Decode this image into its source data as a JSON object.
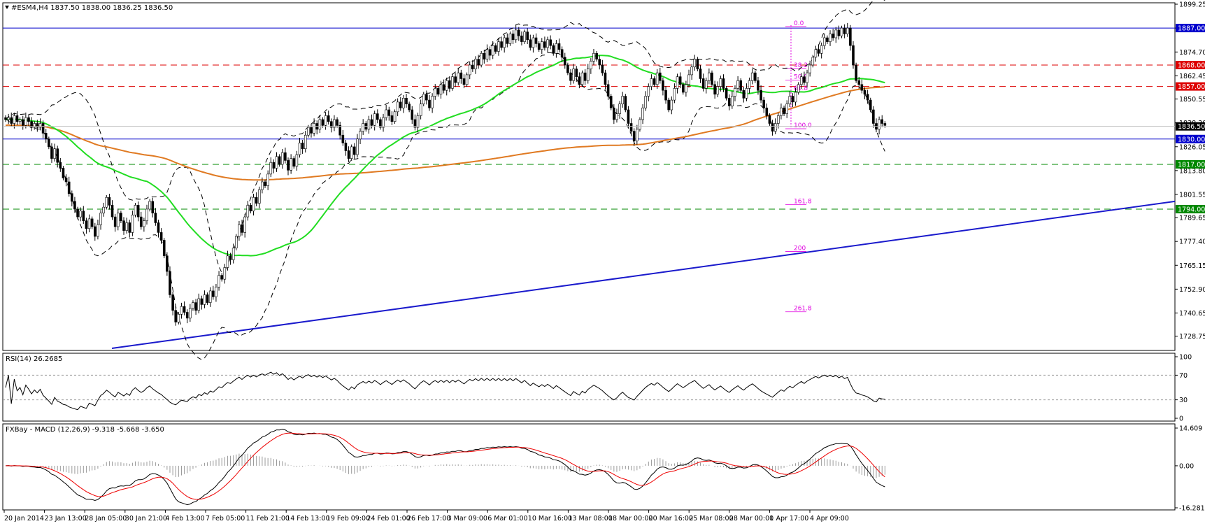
{
  "chart_data": [
    {
      "type": "candlestick",
      "title": "#ESM4,H4  1837.50 1838.00 1836.25 1836.50",
      "ylim": [
        1722.5,
        1899.25
      ],
      "y_ticks": [
        "1899.25",
        "1887.00",
        "1874.70",
        "1862.45",
        "1850.55",
        "1838.30",
        "1826.05",
        "1813.80",
        "1801.55",
        "1789.65",
        "1777.40",
        "1765.15",
        "1752.90",
        "1740.65",
        "1728.75"
      ],
      "current_price": 1836.5,
      "current_price_label": "1836.50",
      "close": [
        1840,
        1841,
        1838,
        1842,
        1839,
        1840,
        1837,
        1841,
        1839,
        1836,
        1838,
        1836,
        1838,
        1833,
        1830,
        1826,
        1820,
        1825,
        1818,
        1815,
        1810,
        1808,
        1802,
        1798,
        1794,
        1790,
        1793,
        1788,
        1784,
        1789,
        1785,
        1780,
        1786,
        1792,
        1795,
        1800,
        1796,
        1790,
        1785,
        1792,
        1788,
        1783,
        1787,
        1782,
        1791,
        1796,
        1790,
        1785,
        1788,
        1794,
        1798,
        1792,
        1787,
        1782,
        1778,
        1770,
        1762,
        1750,
        1742,
        1736,
        1740,
        1744,
        1741,
        1738,
        1743,
        1746,
        1742,
        1748,
        1745,
        1750,
        1746,
        1752,
        1749,
        1754,
        1760,
        1758,
        1764,
        1770,
        1768,
        1774,
        1780,
        1786,
        1782,
        1790,
        1796,
        1793,
        1800,
        1797,
        1804,
        1808,
        1806,
        1812,
        1818,
        1815,
        1821,
        1817,
        1823,
        1819,
        1814,
        1820,
        1816,
        1822,
        1828,
        1825,
        1832,
        1836,
        1833,
        1838,
        1835,
        1840,
        1837,
        1842,
        1839,
        1836,
        1840,
        1837,
        1832,
        1828,
        1824,
        1820,
        1826,
        1822,
        1830,
        1834,
        1838,
        1835,
        1840,
        1837,
        1843,
        1840,
        1836,
        1841,
        1845,
        1842,
        1839,
        1844,
        1849,
        1846,
        1851,
        1848,
        1845,
        1840,
        1836,
        1842,
        1848,
        1853,
        1850,
        1846,
        1852,
        1856,
        1853,
        1858,
        1855,
        1860,
        1856,
        1862,
        1859,
        1864,
        1861,
        1858,
        1863,
        1868,
        1866,
        1871,
        1868,
        1874,
        1871,
        1876,
        1873,
        1878,
        1875,
        1880,
        1877,
        1882,
        1879,
        1884,
        1881,
        1886,
        1883,
        1880,
        1885,
        1881,
        1877,
        1882,
        1879,
        1876,
        1880,
        1877,
        1881,
        1878,
        1874,
        1879,
        1876,
        1872,
        1868,
        1864,
        1860,
        1866,
        1862,
        1858,
        1864,
        1860,
        1866,
        1870,
        1874,
        1871,
        1868,
        1864,
        1858,
        1852,
        1846,
        1840,
        1843,
        1848,
        1852,
        1845,
        1838,
        1834,
        1829,
        1835,
        1840,
        1846,
        1852,
        1857,
        1861,
        1858,
        1864,
        1860,
        1855,
        1850,
        1845,
        1850,
        1856,
        1862,
        1858,
        1854,
        1858,
        1863,
        1867,
        1871,
        1866,
        1861,
        1856,
        1860,
        1864,
        1858,
        1853,
        1857,
        1861,
        1856,
        1851,
        1847,
        1852,
        1856,
        1860,
        1855,
        1851,
        1856,
        1860,
        1864,
        1860,
        1855,
        1850,
        1846,
        1842,
        1838,
        1834,
        1838,
        1842,
        1846,
        1843,
        1848,
        1852,
        1849,
        1854,
        1858,
        1862,
        1859,
        1864,
        1868,
        1872,
        1876,
        1874,
        1878,
        1882,
        1880,
        1884,
        1882,
        1886,
        1883,
        1887,
        1884,
        1887,
        1878,
        1868,
        1860,
        1858,
        1855,
        1853,
        1850,
        1845,
        1838,
        1835,
        1840,
        1838,
        1837
      ]
    },
    {
      "type": "line",
      "title": "RSI(14) 26.2685",
      "ylim": [
        0,
        100
      ],
      "y_ticks": [
        "100",
        "70",
        "30",
        "0"
      ],
      "levels": [
        70,
        30
      ]
    },
    {
      "type": "histogram+line",
      "title": "FXBay - MACD (12,26,9) -9.318 -5.668 -3.650",
      "ylim": [
        -16.281,
        14.609
      ],
      "y_ticks": [
        "14.609",
        "0.00",
        "-16.281"
      ]
    }
  ],
  "x_axis": {
    "labels": [
      "20 Jan 2014",
      "23 Jan 13:00",
      "28 Jan 05:00",
      "30 Jan 21:00",
      "4 Feb 13:00",
      "7 Feb 05:00",
      "11 Feb 21:00",
      "14 Feb 13:00",
      "19 Feb 09:00",
      "24 Feb 01:00",
      "26 Feb 17:00",
      "3 Mar 09:00",
      "6 Mar 01:00",
      "10 Mar 16:00",
      "13 Mar 08:00",
      "18 Mar 00:00",
      "20 Mar 16:00",
      "25 Mar 08:00",
      "28 Mar 00:00",
      "1 Apr 17:00",
      "4 Apr 09:00"
    ]
  },
  "levels": [
    {
      "value": 1887.0,
      "label": "1887.00",
      "color": "#0000cc",
      "style": "solid"
    },
    {
      "value": 1868.0,
      "label": "1868.00",
      "color": "#dd0000",
      "style": "dashed"
    },
    {
      "value": 1857.0,
      "label": "1857.00",
      "color": "#dd0000",
      "style": "dashed"
    },
    {
      "value": 1830.0,
      "label": "1830.00",
      "color": "#0000cc",
      "style": "solid"
    },
    {
      "value": 1817.0,
      "label": "1817.00",
      "color": "#008800",
      "style": "dashed"
    },
    {
      "value": 1794.0,
      "label": "1794.00",
      "color": "#008800",
      "style": "dashed"
    }
  ],
  "fibonacci": [
    {
      "label": "0.0",
      "value": 1888.5
    },
    {
      "label": "38.2",
      "value": 1867
    },
    {
      "label": "50.0",
      "value": 1861
    },
    {
      "label": "61.8",
      "value": 1855
    },
    {
      "label": "100.0",
      "value": 1836
    },
    {
      "label": "161.8",
      "value": 1797
    },
    {
      "label": "200",
      "value": 1773
    },
    {
      "label": "261.8",
      "value": 1742
    }
  ],
  "trendline": {
    "from": 1722.5,
    "to": 1798.0,
    "color": "#1a1acc"
  },
  "colors": {
    "ma_fast": "#22dd22",
    "ma_slow": "#e07a22",
    "rsi": "#000000",
    "macd": "#000000",
    "signal": "#ee0000",
    "fib": "#e000e0"
  }
}
